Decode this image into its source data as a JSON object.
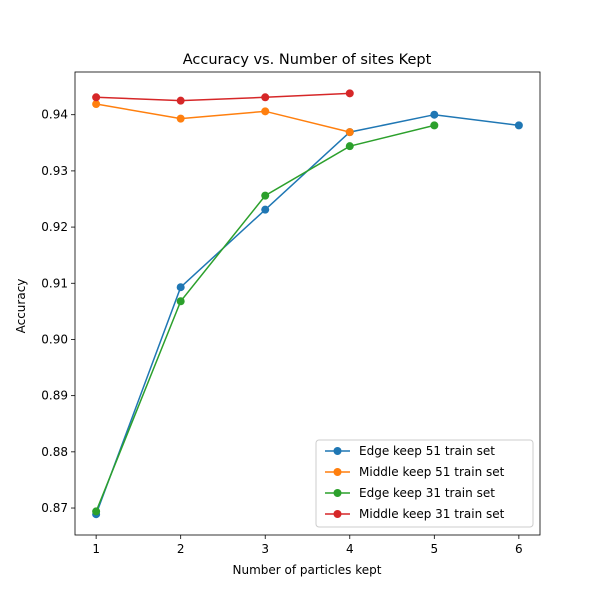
{
  "chart_data": {
    "type": "line",
    "title": "Accuracy vs. Number of sites Kept",
    "xlabel": "Number of particles kept",
    "ylabel": "Accuracy",
    "xlim": [
      0.75,
      6.25
    ],
    "ylim": [
      0.8652,
      0.9476
    ],
    "xticks": [
      1,
      2,
      3,
      4,
      5,
      6
    ],
    "yticks": [
      0.87,
      0.88,
      0.89,
      0.9,
      0.91,
      0.92,
      0.93,
      0.94
    ],
    "ytick_labels": [
      "0.87",
      "0.88",
      "0.89",
      "0.90",
      "0.91",
      "0.92",
      "0.93",
      "0.94"
    ],
    "grid": false,
    "legend_position": "lower-right",
    "series": [
      {
        "name": "Edge keep 51 train set",
        "color": "#1f77b4",
        "x": [
          1,
          2,
          3,
          4,
          5,
          6
        ],
        "y": [
          0.8689,
          0.9093,
          0.9231,
          0.9369,
          0.94,
          0.9381
        ]
      },
      {
        "name": "Middle keep 51 train set",
        "color": "#ff7f0e",
        "x": [
          1,
          2,
          3,
          4
        ],
        "y": [
          0.9419,
          0.9393,
          0.9406,
          0.9369
        ]
      },
      {
        "name": "Edge keep 31 train set",
        "color": "#2ca02c",
        "x": [
          1,
          2,
          3,
          4,
          5
        ],
        "y": [
          0.8694,
          0.9068,
          0.9256,
          0.9344,
          0.9381
        ]
      },
      {
        "name": "Middle keep 31 train set",
        "color": "#d62728",
        "x": [
          1,
          2,
          3,
          4
        ],
        "y": [
          0.9431,
          0.9425,
          0.9431,
          0.9438
        ]
      }
    ]
  }
}
